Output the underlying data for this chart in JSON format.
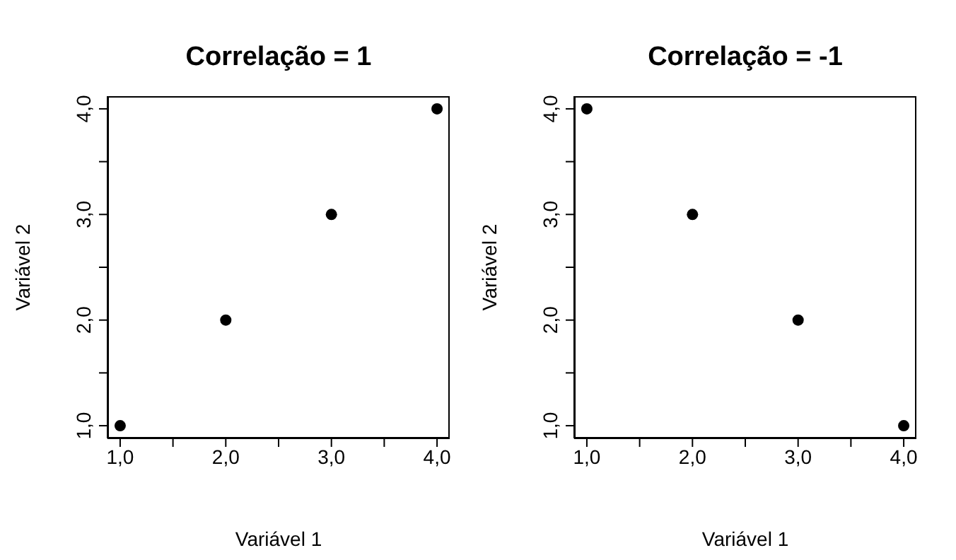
{
  "chart_data": [
    {
      "type": "scatter",
      "title": "Correlação = 1",
      "xlabel": "Variável 1",
      "ylabel": "Variável 2",
      "x": [
        1,
        2,
        3,
        4
      ],
      "values": [
        1,
        2,
        3,
        4
      ],
      "color": "#000000",
      "marker": "circle",
      "xlim": [
        0.88,
        4.12
      ],
      "ylim": [
        0.88,
        4.12
      ],
      "xticks": [
        {
          "value": 1,
          "label": "1,0"
        },
        {
          "value": 1.5,
          "label": null
        },
        {
          "value": 2,
          "label": "2,0"
        },
        {
          "value": 2.5,
          "label": null
        },
        {
          "value": 3,
          "label": "3,0"
        },
        {
          "value": 3.5,
          "label": null
        },
        {
          "value": 4,
          "label": "4,0"
        }
      ],
      "yticks": [
        {
          "value": 1,
          "label": "1,0"
        },
        {
          "value": 1.5,
          "label": null
        },
        {
          "value": 2,
          "label": "2,0"
        },
        {
          "value": 2.5,
          "label": null
        },
        {
          "value": 3,
          "label": "3,0"
        },
        {
          "value": 3.5,
          "label": null
        },
        {
          "value": 4,
          "label": "4,0"
        }
      ]
    },
    {
      "type": "scatter",
      "title": "Correlação = -1",
      "xlabel": "Variável 1",
      "ylabel": "Variável 2",
      "x": [
        1,
        2,
        3,
        4
      ],
      "values": [
        4,
        3,
        2,
        1
      ],
      "color": "#000000",
      "marker": "circle",
      "xlim": [
        0.88,
        4.12
      ],
      "ylim": [
        0.88,
        4.12
      ],
      "xticks": [
        {
          "value": 1,
          "label": "1,0"
        },
        {
          "value": 1.5,
          "label": null
        },
        {
          "value": 2,
          "label": "2,0"
        },
        {
          "value": 2.5,
          "label": null
        },
        {
          "value": 3,
          "label": "3,0"
        },
        {
          "value": 3.5,
          "label": null
        },
        {
          "value": 4,
          "label": "4,0"
        }
      ],
      "yticks": [
        {
          "value": 1,
          "label": "1,0"
        },
        {
          "value": 1.5,
          "label": null
        },
        {
          "value": 2,
          "label": "2,0"
        },
        {
          "value": 2.5,
          "label": null
        },
        {
          "value": 3,
          "label": "3,0"
        },
        {
          "value": 3.5,
          "label": null
        },
        {
          "value": 4,
          "label": "4,0"
        }
      ]
    }
  ]
}
